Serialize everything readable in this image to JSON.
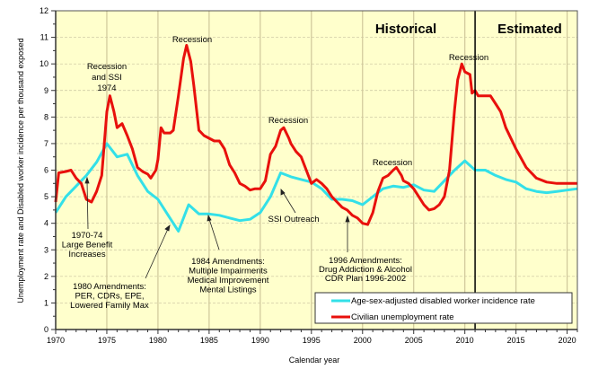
{
  "chart_data": {
    "type": "line",
    "title": "",
    "xlabel": "Calendar year",
    "ylabel": "Unemployment rate and Disabled worker incidence per thousand exposed",
    "xlim": [
      1970,
      2021
    ],
    "ylim": [
      0,
      12
    ],
    "x_ticks": [
      "1970",
      "1975",
      "1980",
      "1985",
      "1990",
      "1995",
      "2000",
      "2005",
      "2010",
      "2015",
      "2020"
    ],
    "y_ticks": [
      "0",
      "1",
      "2",
      "3",
      "4",
      "5",
      "6",
      "7",
      "8",
      "9",
      "10",
      "11",
      "12"
    ],
    "grid": true,
    "legend_position": "bottom-right",
    "divider_year": 2011,
    "regions": {
      "historical": "Historical",
      "estimated": "Estimated"
    },
    "series": [
      {
        "name": "Age-sex-adjusted disabled worker incidence rate",
        "color": "#33e0e8",
        "x": [
          1970,
          1971,
          1972,
          1973,
          1974,
          1975,
          1976,
          1977,
          1978,
          1979,
          1980,
          1981,
          1982,
          1983,
          1984,
          1985,
          1986,
          1987,
          1988,
          1989,
          1990,
          1991,
          1992,
          1993,
          1994,
          1995,
          1996,
          1997,
          1998,
          1999,
          2000,
          2001,
          2002,
          2003,
          2004,
          2005,
          2006,
          2007,
          2008,
          2009,
          2010,
          2011,
          2012,
          2013,
          2014,
          2015,
          2016,
          2017,
          2018,
          2019,
          2020,
          2021
        ],
        "y": [
          4.4,
          5.0,
          5.4,
          5.8,
          6.3,
          7.0,
          6.5,
          6.6,
          5.8,
          5.2,
          4.9,
          4.3,
          3.7,
          4.7,
          4.35,
          4.35,
          4.3,
          4.2,
          4.1,
          4.15,
          4.4,
          5.0,
          5.9,
          5.75,
          5.65,
          5.55,
          5.3,
          4.9,
          4.9,
          4.85,
          4.7,
          5.0,
          5.3,
          5.4,
          5.35,
          5.45,
          5.25,
          5.2,
          5.6,
          6.0,
          6.35,
          6.0,
          6.0,
          5.8,
          5.65,
          5.55,
          5.3,
          5.2,
          5.15,
          5.2,
          5.25,
          5.3
        ]
      },
      {
        "name": "Civilian unemployment rate",
        "color": "#e8100c",
        "x": [
          1970,
          1970.3,
          1971,
          1971.5,
          1972,
          1972.5,
          1973,
          1973.5,
          1974,
          1974.5,
          1975,
          1975.3,
          1975.7,
          1976,
          1976.5,
          1977,
          1977.5,
          1978,
          1978.5,
          1979,
          1979.3,
          1979.8,
          1980,
          1980.3,
          1980.6,
          1981.2,
          1981.5,
          1982,
          1982.5,
          1982.8,
          1983.2,
          1983.5,
          1984,
          1984.5,
          1985,
          1985.5,
          1986,
          1986.5,
          1987,
          1987.5,
          1988,
          1988.5,
          1989,
          1989.5,
          1990,
          1990.5,
          1991,
          1991.5,
          1992,
          1992.3,
          1992.8,
          1993,
          1993.5,
          1994,
          1994.5,
          1995,
          1995.5,
          1996,
          1996.5,
          1997,
          1997.5,
          1998,
          1998.5,
          1999,
          1999.5,
          2000,
          2000.5,
          2001,
          2001.5,
          2002,
          2002.5,
          2003,
          2003.3,
          2003.8,
          2004,
          2004.5,
          2005,
          2005.5,
          2006,
          2006.5,
          2007,
          2007.5,
          2008,
          2008.5,
          2009,
          2009.3,
          2009.7,
          2010,
          2010.5,
          2010.7,
          2011,
          2011.3,
          2012,
          2012.5,
          2013,
          2013.5,
          2014,
          2015,
          2016,
          2017,
          2018,
          2019,
          2021
        ],
        "y": [
          4.8,
          5.9,
          5.95,
          6.0,
          5.7,
          5.5,
          4.9,
          4.8,
          5.2,
          5.8,
          8.2,
          8.8,
          8.2,
          7.6,
          7.75,
          7.3,
          6.8,
          6.1,
          5.95,
          5.85,
          5.7,
          6.0,
          6.4,
          7.6,
          7.4,
          7.4,
          7.5,
          8.8,
          10.2,
          10.7,
          10.1,
          9.2,
          7.5,
          7.3,
          7.2,
          7.1,
          7.1,
          6.8,
          6.2,
          5.9,
          5.5,
          5.4,
          5.25,
          5.3,
          5.3,
          5.6,
          6.6,
          6.9,
          7.5,
          7.6,
          7.2,
          7.0,
          6.7,
          6.5,
          6.0,
          5.5,
          5.65,
          5.5,
          5.3,
          5.0,
          4.8,
          4.6,
          4.5,
          4.3,
          4.2,
          4.0,
          3.95,
          4.4,
          5.2,
          5.7,
          5.8,
          6.0,
          6.1,
          5.8,
          5.6,
          5.5,
          5.3,
          5.0,
          4.7,
          4.5,
          4.55,
          4.7,
          5.0,
          6.0,
          8.3,
          9.4,
          10.0,
          9.7,
          9.6,
          8.9,
          9.0,
          8.8,
          8.8,
          8.8,
          8.5,
          8.2,
          7.6,
          6.8,
          6.1,
          5.7,
          5.55,
          5.5,
          5.5
        ]
      }
    ],
    "annotations": {
      "recession_1974": [
        "Recession",
        "and SSI",
        "1974"
      ],
      "recession_1982": "Recession",
      "recession_1991": "Recession",
      "recession_2002": "Recession",
      "recession_2009": "Recession",
      "benefit_increases": [
        "1970-74",
        "Large Benefit",
        "Increases"
      ],
      "amend_1980": [
        "1980 Amendments:",
        "PER, CDRs, EPE,",
        "Lowered Family Max"
      ],
      "amend_1984": [
        "1984 Amendments:",
        "Multiple Impairments",
        "Medical Improvement",
        "Mental Listings"
      ],
      "ssi_outreach": "SSI Outreach",
      "amend_1996": [
        "1996 Amendments:",
        "Drug Addiction & Alcohol",
        "CDR Plan 1996-2002"
      ]
    }
  }
}
